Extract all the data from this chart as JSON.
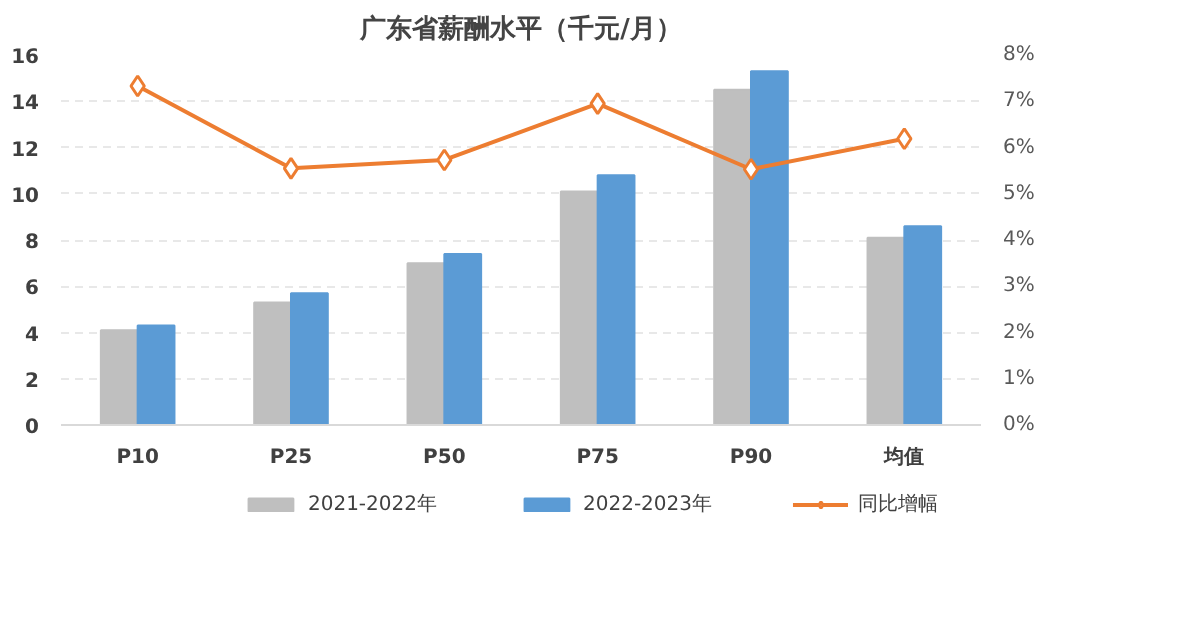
{
  "chart_data": {
    "type": "bar",
    "title": "广东省薪酬水平（千元/月）",
    "categories": [
      "P10",
      "P25",
      "P50",
      "P75",
      "P90",
      "均值"
    ],
    "series": [
      {
        "name": "2021-2022年",
        "color": "#bfbfbf",
        "values": [
          4.1,
          5.3,
          7.0,
          10.1,
          14.5,
          8.1
        ]
      },
      {
        "name": "2022-2023年",
        "color": "#5b9bd5",
        "values": [
          4.3,
          5.7,
          7.4,
          10.8,
          15.3,
          8.6
        ]
      },
      {
        "name": "同比增幅",
        "type": "line",
        "axis": "y2",
        "color": "#ed7d31",
        "marker": "diamond",
        "values": [
          7.33,
          5.55,
          5.73,
          6.95,
          5.53,
          6.19
        ]
      }
    ],
    "ylim": [
      0,
      16
    ],
    "yticks": [
      0,
      2,
      4,
      6,
      8,
      10,
      12,
      14,
      16
    ],
    "y2lim": [
      0,
      8
    ],
    "y2ticks": [
      {
        "value": 0,
        "label": "0%"
      },
      {
        "value": 1,
        "label": "1%"
      },
      {
        "value": 2,
        "label": "2%"
      },
      {
        "value": 3,
        "label": "3%"
      },
      {
        "value": 4,
        "label": "4%"
      },
      {
        "value": 5,
        "label": "5%"
      },
      {
        "value": 6,
        "label": "6%"
      },
      {
        "value": 7,
        "label": "7%"
      },
      {
        "value": 8,
        "label": "8%"
      }
    ],
    "grid": "y",
    "legend": "bottom"
  }
}
